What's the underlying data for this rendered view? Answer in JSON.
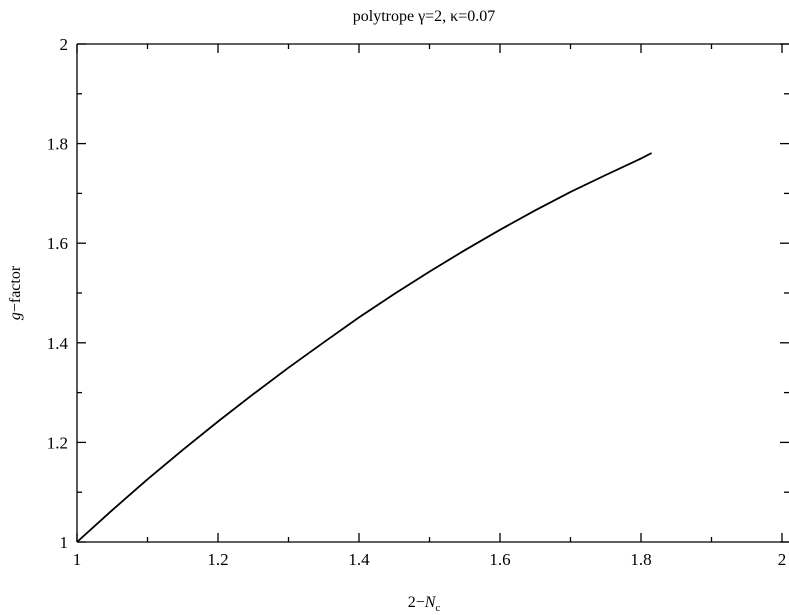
{
  "chart_data": {
    "type": "line",
    "title": "polytrope γ=2, κ=0.07",
    "xlabel": "2−N_c",
    "xlabel_main": "2−",
    "xlabel_var": "N",
    "xlabel_sub": "c",
    "ylabel": "g−factor",
    "ylabel_var": "g",
    "ylabel_rest": "−factor",
    "xlim": [
      1,
      2
    ],
    "ylim": [
      1,
      2
    ],
    "x_ticks": [
      1,
      1.2,
      1.4,
      1.6,
      1.8,
      2
    ],
    "x_tick_labels": [
      "1",
      "1.2",
      "1.4",
      "1.6",
      "1.8",
      "2"
    ],
    "y_ticks": [
      1,
      1.2,
      1.4,
      1.6,
      1.8,
      2
    ],
    "y_tick_labels": [
      "1",
      "1.2",
      "1.4",
      "1.6",
      "1.8",
      "2"
    ],
    "grid": false,
    "series": [
      {
        "color": "#000000",
        "x": [
          1.0,
          1.05,
          1.1,
          1.15,
          1.2,
          1.25,
          1.3,
          1.35,
          1.4,
          1.45,
          1.5,
          1.55,
          1.6,
          1.65,
          1.7,
          1.75,
          1.8,
          1.815
        ],
        "y": [
          1.0,
          1.064,
          1.126,
          1.185,
          1.242,
          1.297,
          1.35,
          1.401,
          1.451,
          1.498,
          1.543,
          1.586,
          1.627,
          1.666,
          1.703,
          1.737,
          1.77,
          1.781
        ]
      }
    ]
  }
}
